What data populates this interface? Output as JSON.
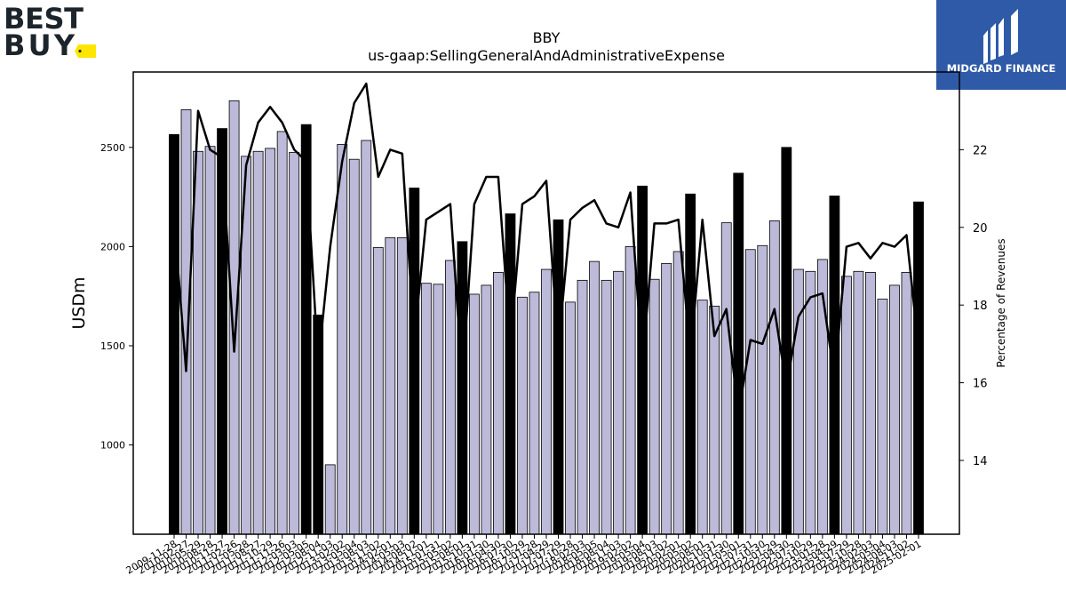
{
  "brand_logo": {
    "text_line1": "BEST",
    "text_line2": "BUY",
    "tag_color": "#ffe600",
    "text_color": "#1d252c"
  },
  "sponsor_logo": {
    "text": "MIDGARD FINANCE",
    "bg_color": "#2f5aa8",
    "icon": "midgard-m-icon"
  },
  "chart_data": {
    "type": "bar",
    "title": "BBY",
    "subtitle": "us-gaap:SellingGeneralAndAdministrativeExpense",
    "ylabel": "USDm",
    "y2label": "Percentage of Revenues",
    "ylim": [
      550,
      2880
    ],
    "y2lim": [
      12.1,
      24.0
    ],
    "yticks": [
      1000,
      1500,
      2000,
      2500
    ],
    "y2ticks": [
      14,
      16,
      18,
      20,
      22
    ],
    "colors": {
      "annual_bar": "#000000",
      "quarter_bar": "#bcbad8",
      "line": "#000000"
    },
    "x_labels": [
      "2009-11-28",
      "2010-02-27",
      "2010-05-29",
      "2010-08-28",
      "2010-11-27",
      "2011-02-26",
      "2011-05-28",
      "2011-08-27",
      "2011-10-29",
      "2011-11-26",
      "2012-03-03",
      "2012-05-05",
      "2012-08-04",
      "2012-11-03",
      "2013-02-02",
      "2013-05-04",
      "2013-08-03",
      "2013-11-02",
      "2014-02-01",
      "2014-05-03",
      "2014-08-02",
      "2014-11-01",
      "2015-01-31",
      "2015-05-02",
      "2015-08-01",
      "2015-10-31",
      "2016-01-30",
      "2016-04-30",
      "2016-07-30",
      "2016-10-29",
      "2017-01-28",
      "2017-04-29",
      "2017-07-29",
      "2017-10-28",
      "2018-02-03",
      "2018-05-05",
      "2018-08-04",
      "2018-11-03",
      "2019-02-02",
      "2019-05-04",
      "2019-08-03",
      "2019-11-02",
      "2020-02-01",
      "2020-05-02",
      "2020-08-01",
      "2020-10-31",
      "2021-01-30",
      "2021-05-01",
      "2021-07-31",
      "2021-10-30",
      "2022-01-29",
      "2022-04-30",
      "2022-07-30",
      "2022-10-29",
      "2023-01-28",
      "2023-04-29",
      "2023-07-29",
      "2023-10-28",
      "2024-02-03",
      "2024-05-04",
      "2024-08-03",
      "2024-11-02",
      "2025-02-01"
    ],
    "series": [
      {
        "values": [
          2565,
          2690,
          2480,
          2505,
          2595,
          2735,
          2455,
          2480,
          2495,
          2580,
          2475,
          2615,
          1655,
          900,
          2515,
          2440,
          2535,
          1995,
          2045,
          2045,
          2295,
          1815,
          1810,
          1930,
          2025,
          1760,
          1805,
          1870,
          2165,
          1745,
          1770,
          1885,
          2135,
          1720,
          1830,
          1925,
          1830,
          1875,
          2000,
          2305,
          1835,
          1915,
          1975,
          2265,
          1730,
          1700,
          2120,
          2370,
          1985,
          2005,
          2130,
          2500,
          1885,
          1875,
          1935,
          2255,
          1850,
          1875,
          1870,
          1735,
          1805,
          1870,
          2225
        ],
        "annual": [
          true,
          false,
          false,
          false,
          true,
          false,
          false,
          false,
          false,
          false,
          false,
          true,
          true,
          false,
          false,
          false,
          false,
          false,
          false,
          false,
          true,
          false,
          false,
          false,
          true,
          false,
          false,
          false,
          true,
          false,
          false,
          false,
          true,
          false,
          false,
          false,
          false,
          false,
          false,
          true,
          false,
          false,
          false,
          true,
          false,
          false,
          false,
          true,
          false,
          false,
          false,
          true,
          false,
          false,
          false,
          true,
          false,
          false,
          false,
          false,
          false,
          false,
          true
        ]
      },
      {
        "values": [
          20.2,
          16.3,
          23.0,
          22.0,
          21.8,
          16.8,
          21.6,
          22.7,
          23.1,
          22.7,
          22.0,
          21.7,
          16.5,
          19.5,
          21.7,
          23.2,
          23.7,
          21.3,
          22.0,
          21.9,
          17.1,
          20.2,
          20.4,
          20.6,
          16.1,
          20.6,
          21.3,
          21.3,
          17.0,
          20.6,
          20.8,
          21.2,
          16.9,
          20.2,
          20.5,
          20.7,
          20.1,
          20.0,
          20.9,
          16.5,
          20.1,
          20.1,
          20.2,
          16.7,
          20.2,
          17.2,
          17.9,
          15.2,
          17.1,
          17.0,
          17.9,
          15.9,
          17.7,
          18.2,
          18.3,
          16.1,
          19.5,
          19.6,
          19.2,
          19.6,
          19.5,
          19.8,
          16.9
        ]
      }
    ]
  }
}
